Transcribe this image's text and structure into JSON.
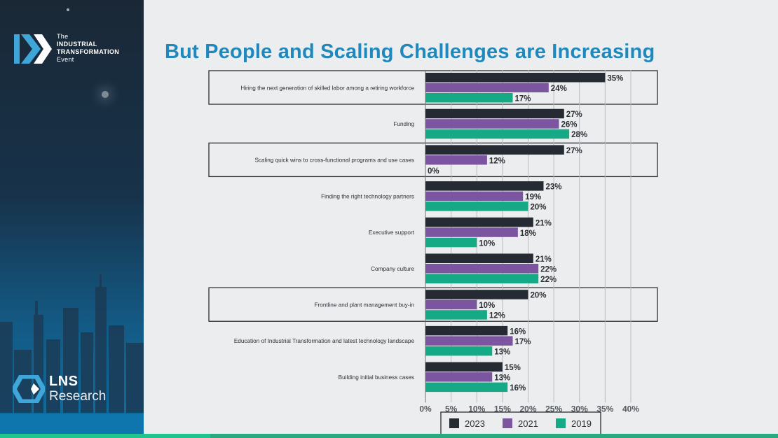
{
  "branding": {
    "event_line1": "The",
    "event_line2": "INDUSTRIAL",
    "event_line3": "TRANSFORMATION",
    "event_line4": "Event",
    "company_name_line1": "LNS",
    "company_name_line2": "Research"
  },
  "slide": {
    "title": "But People and Scaling Challenges are Increasing"
  },
  "chart_data": {
    "type": "bar",
    "orientation": "horizontal",
    "categories": [
      "Hiring the next generation of skilled labor among a retiring workforce",
      "Funding",
      "Scaling quick wins to cross-functional programs and use cases",
      "Finding the right technology partners",
      "Executive support",
      "Company culture",
      "Frontline and plant management buy-in",
      "Education of Industrial Transformation and latest technology landscape",
      "Building initial business cases"
    ],
    "highlighted_categories": [
      0,
      2,
      6
    ],
    "series": [
      {
        "name": "2023",
        "color": "#252a33",
        "values": [
          35,
          27,
          27,
          23,
          21,
          21,
          20,
          16,
          15
        ]
      },
      {
        "name": "2021",
        "color": "#7b559f",
        "values": [
          24,
          26,
          12,
          19,
          18,
          22,
          10,
          17,
          13
        ]
      },
      {
        "name": "2019",
        "color": "#15a985",
        "values": [
          17,
          28,
          0,
          20,
          10,
          22,
          12,
          13,
          16
        ]
      }
    ],
    "value_labels": [
      [
        "35%",
        "27%",
        "27%",
        "23%",
        "21%",
        "21%",
        "20%",
        "16%",
        "15%"
      ],
      [
        "24%",
        "26%",
        "12%",
        "19%",
        "18%",
        "22%",
        "10%",
        "17%",
        "13%"
      ],
      [
        "17%",
        "28%",
        "0%",
        "20%",
        "10%",
        "22%",
        "12%",
        "13%",
        "16%"
      ]
    ],
    "xlim": [
      0,
      40
    ],
    "xticks": [
      "0%",
      "5%",
      "10%",
      "15%",
      "20%",
      "25%",
      "30%",
      "35%",
      "40%"
    ],
    "grid": true,
    "legend_position": "bottom",
    "xlabel": "",
    "ylabel": ""
  }
}
